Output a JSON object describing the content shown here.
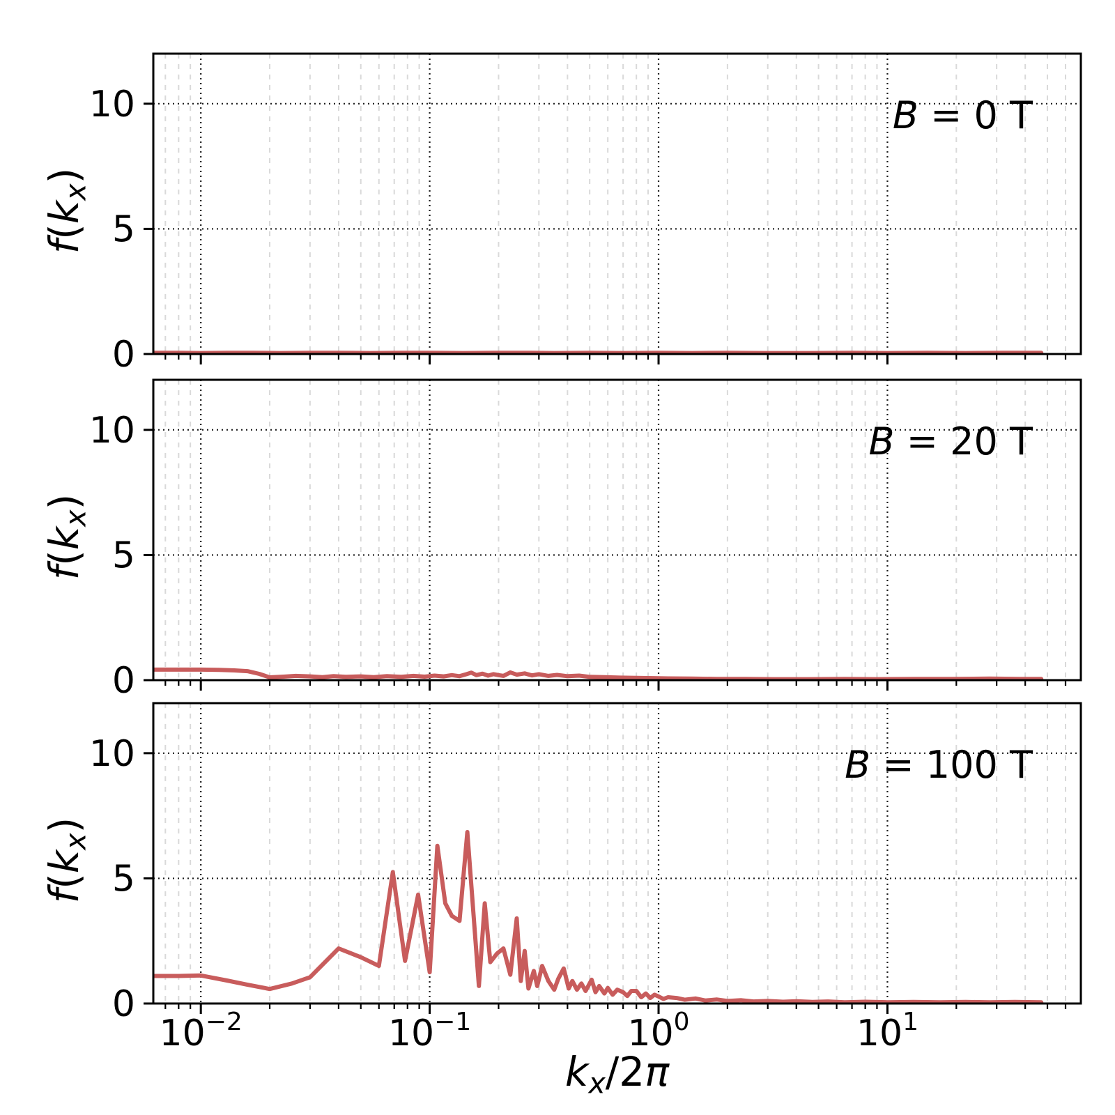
{
  "figure": {
    "description": "Three stacked line subplots of f(k_x) versus k_x/2pi on a shared logarithmic x-axis, one panel per magnetic field strength"
  },
  "colors": {
    "line": "#c85c5c",
    "grid_major": "#1c1c1c",
    "grid_minor": "#d9d9d9",
    "spine": "#000000",
    "text": "#000000",
    "background": "#ffffff"
  },
  "chart_data": {
    "type": "line",
    "xscale": "log",
    "xlabel": "k_x/2π",
    "ylabel": "f(k_x)",
    "xlabel_rich": [
      {
        "t": "k",
        "i": true
      },
      {
        "t": "x",
        "i": true,
        "sub": true
      },
      {
        "t": "/2"
      },
      {
        "t": "π",
        "i": true
      }
    ],
    "ylabel_rich": [
      {
        "t": "f",
        "i": true
      },
      {
        "t": "("
      },
      {
        "t": "k",
        "i": true
      },
      {
        "t": "x",
        "i": true,
        "sub": true
      },
      {
        "t": ")"
      }
    ],
    "xlim": [
      0.0062,
      70
    ],
    "ylim": [
      0,
      12
    ],
    "yticks": [
      0,
      5,
      10
    ],
    "ytick_labels": [
      "0",
      "5",
      "10"
    ],
    "xticks": [
      0.01,
      0.1,
      1,
      10
    ],
    "xtick_labels_rich": [
      [
        {
          "t": "10"
        },
        {
          "t": "−2",
          "sup": true
        }
      ],
      [
        {
          "t": "10"
        },
        {
          "t": "−1",
          "sup": true
        }
      ],
      [
        {
          "t": "10"
        },
        {
          "t": "0",
          "sup": true
        }
      ],
      [
        {
          "t": "10"
        },
        {
          "t": "1",
          "sup": true
        }
      ]
    ],
    "grid": {
      "major": "dotted dark, vertical at decades and horizontal at 5 and 10",
      "minor": "light gray dashed vertical"
    },
    "legend_position": "none",
    "panels": [
      {
        "annotation": "B = 0 T",
        "annotation_rich": [
          {
            "t": "B",
            "i": true
          },
          {
            "t": " = 0 T"
          }
        ],
        "series": {
          "x": [
            0.0062,
            0.008,
            0.01,
            0.013,
            0.017,
            0.022,
            0.03,
            0.04,
            0.055,
            0.075,
            0.1,
            0.14,
            0.19,
            0.26,
            0.35,
            0.5,
            0.7,
            1,
            1.4,
            2,
            3,
            4.5,
            7,
            10,
            15,
            22,
            32,
            47
          ],
          "y": [
            0.05,
            0.05,
            0.04,
            0.05,
            0.05,
            0.04,
            0.05,
            0.05,
            0.04,
            0.05,
            0.05,
            0.04,
            0.05,
            0.05,
            0.04,
            0.05,
            0.04,
            0.05,
            0.04,
            0.05,
            0.04,
            0.04,
            0.05,
            0.04,
            0.05,
            0.04,
            0.05,
            0.05
          ]
        }
      },
      {
        "annotation": "B = 20 T",
        "annotation_rich": [
          {
            "t": "B",
            "i": true
          },
          {
            "t": " = 20 T"
          }
        ],
        "series": {
          "x": [
            0.0062,
            0.008,
            0.01,
            0.012,
            0.014,
            0.016,
            0.018,
            0.02,
            0.023,
            0.026,
            0.03,
            0.034,
            0.038,
            0.043,
            0.05,
            0.057,
            0.065,
            0.075,
            0.085,
            0.095,
            0.105,
            0.115,
            0.125,
            0.135,
            0.145,
            0.152,
            0.16,
            0.17,
            0.18,
            0.19,
            0.2,
            0.21,
            0.225,
            0.24,
            0.26,
            0.28,
            0.3,
            0.33,
            0.36,
            0.4,
            0.45,
            0.5,
            0.58,
            0.68,
            0.8,
            0.95,
            1.1,
            1.4,
            1.8,
            2.4,
            3.2,
            4.5,
            6.5,
            9,
            13,
            19,
            28,
            38,
            47
          ],
          "y": [
            0.42,
            0.42,
            0.42,
            0.41,
            0.39,
            0.36,
            0.25,
            0.11,
            0.14,
            0.17,
            0.15,
            0.12,
            0.16,
            0.13,
            0.15,
            0.12,
            0.16,
            0.13,
            0.17,
            0.14,
            0.18,
            0.15,
            0.2,
            0.16,
            0.24,
            0.3,
            0.2,
            0.26,
            0.18,
            0.24,
            0.2,
            0.17,
            0.31,
            0.22,
            0.27,
            0.19,
            0.24,
            0.17,
            0.21,
            0.16,
            0.18,
            0.13,
            0.12,
            0.1,
            0.09,
            0.08,
            0.07,
            0.06,
            0.05,
            0.05,
            0.04,
            0.04,
            0.05,
            0.04,
            0.05,
            0.05,
            0.06,
            0.05,
            0.05
          ]
        }
      },
      {
        "annotation": "B = 100 T",
        "annotation_rich": [
          {
            "t": "B",
            "i": true
          },
          {
            "t": " = 100 T"
          }
        ],
        "series": {
          "x": [
            0.0062,
            0.008,
            0.01,
            0.013,
            0.016,
            0.02,
            0.025,
            0.03,
            0.04,
            0.05,
            0.06,
            0.069,
            0.078,
            0.089,
            0.1,
            0.108,
            0.117,
            0.125,
            0.135,
            0.146,
            0.164,
            0.174,
            0.184,
            0.197,
            0.21,
            0.225,
            0.24,
            0.25,
            0.26,
            0.27,
            0.285,
            0.295,
            0.31,
            0.33,
            0.35,
            0.365,
            0.385,
            0.405,
            0.42,
            0.44,
            0.46,
            0.48,
            0.51,
            0.53,
            0.55,
            0.58,
            0.6,
            0.63,
            0.66,
            0.7,
            0.73,
            0.76,
            0.8,
            0.84,
            0.88,
            0.92,
            0.96,
            1.0,
            1.05,
            1.1,
            1.2,
            1.3,
            1.45,
            1.6,
            1.8,
            2.0,
            2.3,
            2.6,
            3.0,
            3.5,
            4.0,
            4.7,
            5.5,
            6.5,
            8.0,
            10,
            13,
            17,
            22,
            28,
            36,
            47
          ],
          "y": [
            1.1,
            1.1,
            1.12,
            0.92,
            0.75,
            0.58,
            0.8,
            1.05,
            2.2,
            1.85,
            1.5,
            5.25,
            1.7,
            4.35,
            1.25,
            6.3,
            4.0,
            3.5,
            3.3,
            6.85,
            0.7,
            4.0,
            1.65,
            2.0,
            2.2,
            1.15,
            3.4,
            0.9,
            2.1,
            0.6,
            1.3,
            0.7,
            1.5,
            0.9,
            0.55,
            1.0,
            1.4,
            0.6,
            0.9,
            0.55,
            0.8,
            0.5,
            0.95,
            0.45,
            0.7,
            0.4,
            0.62,
            0.35,
            0.55,
            0.45,
            0.3,
            0.5,
            0.5,
            0.25,
            0.4,
            0.22,
            0.35,
            0.28,
            0.18,
            0.25,
            0.22,
            0.15,
            0.2,
            0.12,
            0.16,
            0.1,
            0.13,
            0.08,
            0.1,
            0.07,
            0.09,
            0.06,
            0.08,
            0.05,
            0.07,
            0.05,
            0.06,
            0.05,
            0.06,
            0.05,
            0.06,
            0.05
          ]
        }
      }
    ]
  }
}
